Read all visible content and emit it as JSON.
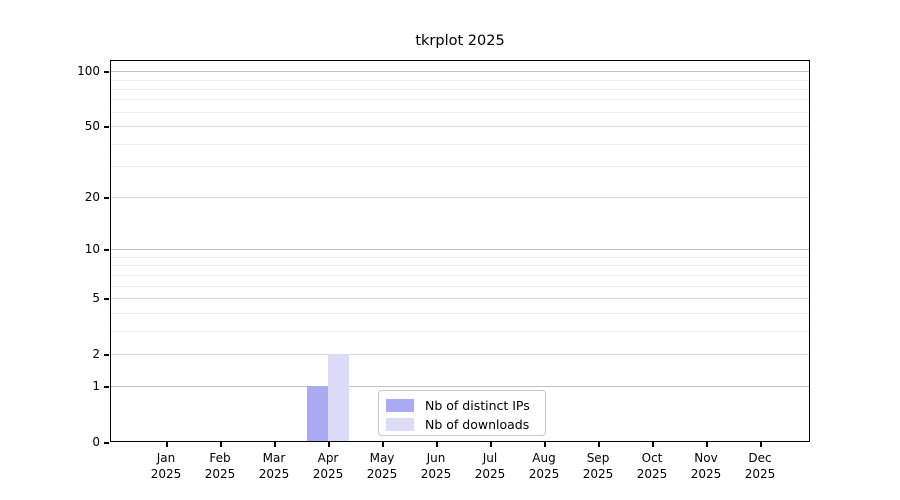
{
  "figure": {
    "title": "tkrplot 2025"
  },
  "legend": {
    "items": [
      {
        "label": "Nb of distinct IPs",
        "color": "#aaaaf2"
      },
      {
        "label": "Nb of downloads",
        "color": "#dcdcf8"
      }
    ]
  },
  "chart_data": {
    "type": "bar",
    "title": "tkrplot 2025",
    "categories": [
      "Jan",
      "Feb",
      "Mar",
      "Apr",
      "May",
      "Jun",
      "Jul",
      "Aug",
      "Sep",
      "Oct",
      "Nov",
      "Dec"
    ],
    "x_tick_year": "2025",
    "series": [
      {
        "name": "Nb of distinct IPs",
        "color": "#aaaaf2",
        "values": [
          0,
          0,
          0,
          1,
          0,
          0,
          0,
          0,
          0,
          0,
          0,
          0
        ]
      },
      {
        "name": "Nb of downloads",
        "color": "#dcdcf8",
        "values": [
          0,
          0,
          0,
          2,
          0,
          0,
          0,
          0,
          0,
          0,
          0,
          0
        ]
      }
    ],
    "yscale": "log1p",
    "ylim": [
      0,
      115
    ],
    "yticks_labeled": [
      0,
      1,
      2,
      5,
      10,
      20,
      50,
      100
    ],
    "yticks_decade": [
      1,
      10,
      100
    ],
    "yticks_minor": [
      3,
      4,
      6,
      7,
      8,
      9,
      30,
      40,
      60,
      70,
      80,
      90
    ],
    "grid": true,
    "legend_position": "lower-center"
  },
  "colors": {
    "grid_decade": "#c2c2c2",
    "grid_major": "#dcdcdc",
    "grid_minor": "#eeeeee",
    "axis": "#000000",
    "background": "#ffffff"
  }
}
